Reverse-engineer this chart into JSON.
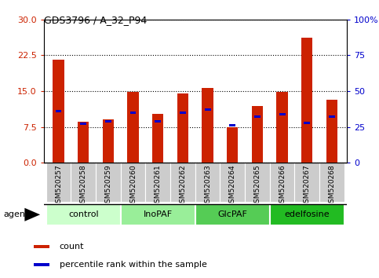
{
  "title": "GDS3796 / A_32_P94",
  "samples": [
    "GSM520257",
    "GSM520258",
    "GSM520259",
    "GSM520260",
    "GSM520261",
    "GSM520262",
    "GSM520263",
    "GSM520264",
    "GSM520265",
    "GSM520266",
    "GSM520267",
    "GSM520268"
  ],
  "count_values": [
    21.5,
    8.5,
    9.0,
    14.8,
    10.2,
    14.5,
    15.7,
    7.5,
    11.8,
    14.8,
    26.2,
    13.2
  ],
  "percentile_values_pct": [
    36,
    27,
    29,
    35,
    29,
    35,
    37,
    26,
    32,
    34,
    28,
    32
  ],
  "bar_color": "#CC2200",
  "percentile_color": "#0000CC",
  "bar_width": 0.45,
  "ylim_left": [
    0,
    30
  ],
  "ylim_right": [
    0,
    100
  ],
  "yticks_left": [
    0,
    7.5,
    15,
    22.5,
    30
  ],
  "yticks_right": [
    0,
    25,
    50,
    75,
    100
  ],
  "groups": [
    {
      "label": "control",
      "start": 0,
      "end": 3,
      "color": "#ccffcc"
    },
    {
      "label": "InoPAF",
      "start": 3,
      "end": 6,
      "color": "#99ee99"
    },
    {
      "label": "GlcPAF",
      "start": 6,
      "end": 9,
      "color": "#55cc55"
    },
    {
      "label": "edelfosine",
      "start": 9,
      "end": 12,
      "color": "#22bb22"
    }
  ],
  "agent_label": "agent",
  "legend_count_label": "count",
  "legend_pct_label": "percentile rank within the sample",
  "tick_label_color_left": "#CC2200",
  "tick_label_color_right": "#0000CC",
  "background_tick_area": "#cccccc",
  "plot_bg": "#ffffff"
}
